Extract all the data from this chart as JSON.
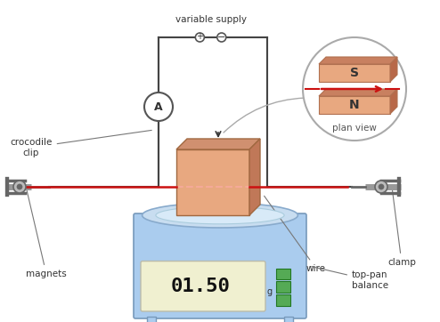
{
  "background_color": "#ffffff",
  "balance": {
    "body_color": "#aaccee",
    "body_edge": "#7799bb",
    "display_color": "#f0f0d0",
    "display_text": "01.50",
    "display_g": "g",
    "btn_color": "#55aa55",
    "btn_edge": "#227722"
  },
  "magnet_block": {
    "front_color": "#e8a880",
    "top_color": "#d09070",
    "right_color": "#c07858",
    "edge_color": "#a06840"
  },
  "wire_color": "#cc1111",
  "circuit_color": "#444444",
  "ammeter": {
    "fill": "#ffffff",
    "edge": "#555555",
    "text": "A"
  },
  "plan_view": {
    "fill": "#ffffff",
    "edge": "#888888",
    "mag_color": "#e8a880",
    "mag_edge": "#b07050",
    "mag_top": "#c88060",
    "label_s": "S",
    "label_n": "N",
    "arrow_color": "#cc1111",
    "text": "plan view"
  },
  "clamp_color": "#999999",
  "clamp_dark": "#666666",
  "plate_color": "#bbddf0",
  "plate_edge": "#88aacc",
  "labels": {
    "variable_supply": "variable supply",
    "crocodile_clip": "crocodile\nclip",
    "magnets": "magnets",
    "wire": "wire",
    "clamp": "clamp",
    "top_pan_balance": "top-pan\nbalance"
  },
  "label_color": "#333333",
  "label_fs": 7.5
}
